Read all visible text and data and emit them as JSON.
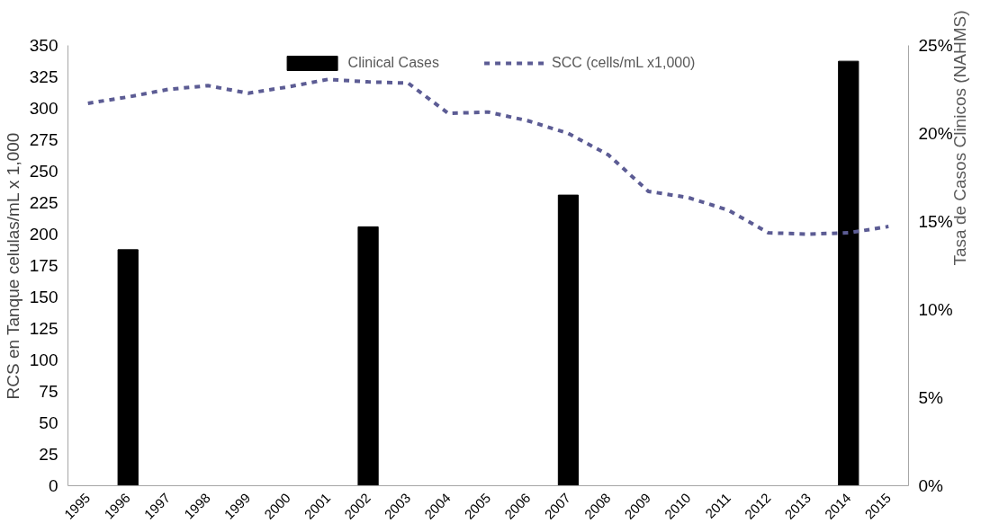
{
  "chart_data": {
    "type": "bar",
    "ylabel": "RCS en Tanque celulas/mL x 1,000",
    "y2label": "Tasa de Casos Clinicos (NAHMS)",
    "categories": [
      "1995",
      "1996",
      "1997",
      "1998",
      "1999",
      "2000",
      "2001",
      "2002",
      "2003",
      "2004",
      "2005",
      "2006",
      "2007",
      "2008",
      "2009",
      "2010",
      "2011",
      "2012",
      "2013",
      "2014",
      "2015"
    ],
    "series": [
      {
        "name": "Clinical Cases",
        "axis": "y2",
        "color": "#000000",
        "values": [
          null,
          13.4,
          null,
          null,
          null,
          null,
          null,
          14.7,
          null,
          null,
          null,
          null,
          16.5,
          null,
          null,
          null,
          null,
          null,
          null,
          24.1,
          null
        ]
      },
      {
        "name": "SCC (cells/mL x1,000)",
        "type": "line",
        "line_style": "dashed",
        "color": "#5c5c94",
        "values": [
          304,
          309,
          315,
          318,
          312,
          317,
          323,
          321,
          320,
          296,
          297,
          290,
          280,
          263,
          234,
          229,
          219,
          201,
          200,
          201,
          206
        ]
      }
    ],
    "ylim": [
      0,
      350
    ],
    "yticks": [
      0,
      25,
      50,
      75,
      100,
      125,
      150,
      175,
      200,
      225,
      250,
      275,
      300,
      325,
      350
    ],
    "y2lim": [
      0,
      25
    ],
    "y2ticks": [
      {
        "value": 0,
        "label": "0%"
      },
      {
        "value": 5,
        "label": "5%"
      },
      {
        "value": 10,
        "label": "10%"
      },
      {
        "value": 15,
        "label": "15%"
      },
      {
        "value": 20,
        "label": "20%"
      },
      {
        "value": 25,
        "label": "25%"
      }
    ],
    "legend": "top",
    "grid": false
  }
}
